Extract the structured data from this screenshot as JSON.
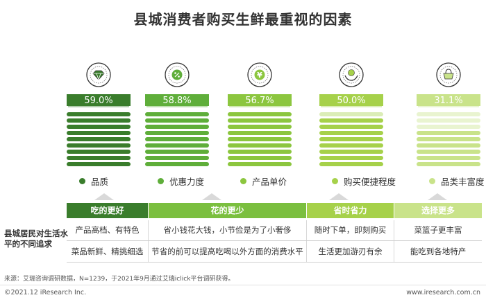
{
  "title": "县城消费者购买生鲜最重视的因素",
  "chart_data": {
    "type": "bar",
    "categories": [
      "品质",
      "优惠力度",
      "产品单价",
      "购买便捷程度",
      "品类丰富度"
    ],
    "values": [
      59.0,
      58.8,
      56.7,
      50.0,
      31.1
    ],
    "value_labels": [
      "59.0%",
      "58.8%",
      "56.7%",
      "50.0%",
      "31.1%"
    ],
    "colors": [
      "#3a7d2c",
      "#5fae3a",
      "#8cc63f",
      "#a6d14a",
      "#c9e38a"
    ],
    "icons": [
      "diamond-icon",
      "discount-icon",
      "yen-icon",
      "hand-coin-icon",
      "basket-icon"
    ]
  },
  "table": {
    "row_label": "县城居民对生活水平的不同追求",
    "groups": [
      {
        "header": "吃的更好",
        "color": "#3a7d2c",
        "rows": [
          "产品高档、有特色",
          "菜品新鲜、精挑细选"
        ]
      },
      {
        "header": "花的更少",
        "color": "#7bbf3f",
        "rows": [
          "省小钱花大钱，小节俭是为了小奢侈",
          "节省的前可以提高吃喝以外方面的消费水平"
        ]
      },
      {
        "header": "省时省力",
        "color": "#a6d14a",
        "rows": [
          "随时下单，即刻购买",
          "生活更加游刃有余"
        ]
      },
      {
        "header": "选择更多",
        "color": "#c9e38a",
        "rows": [
          "菜篮子更丰富",
          "能吃到各地特产"
        ]
      }
    ]
  },
  "footnote": "来源：艾瑞咨询调研数据，N=1239，于2021年9月通过艾瑞iclick平台调研获得。",
  "copyright": "©2021.12 iResearch Inc.",
  "site": "www.iresearch.com.cn"
}
